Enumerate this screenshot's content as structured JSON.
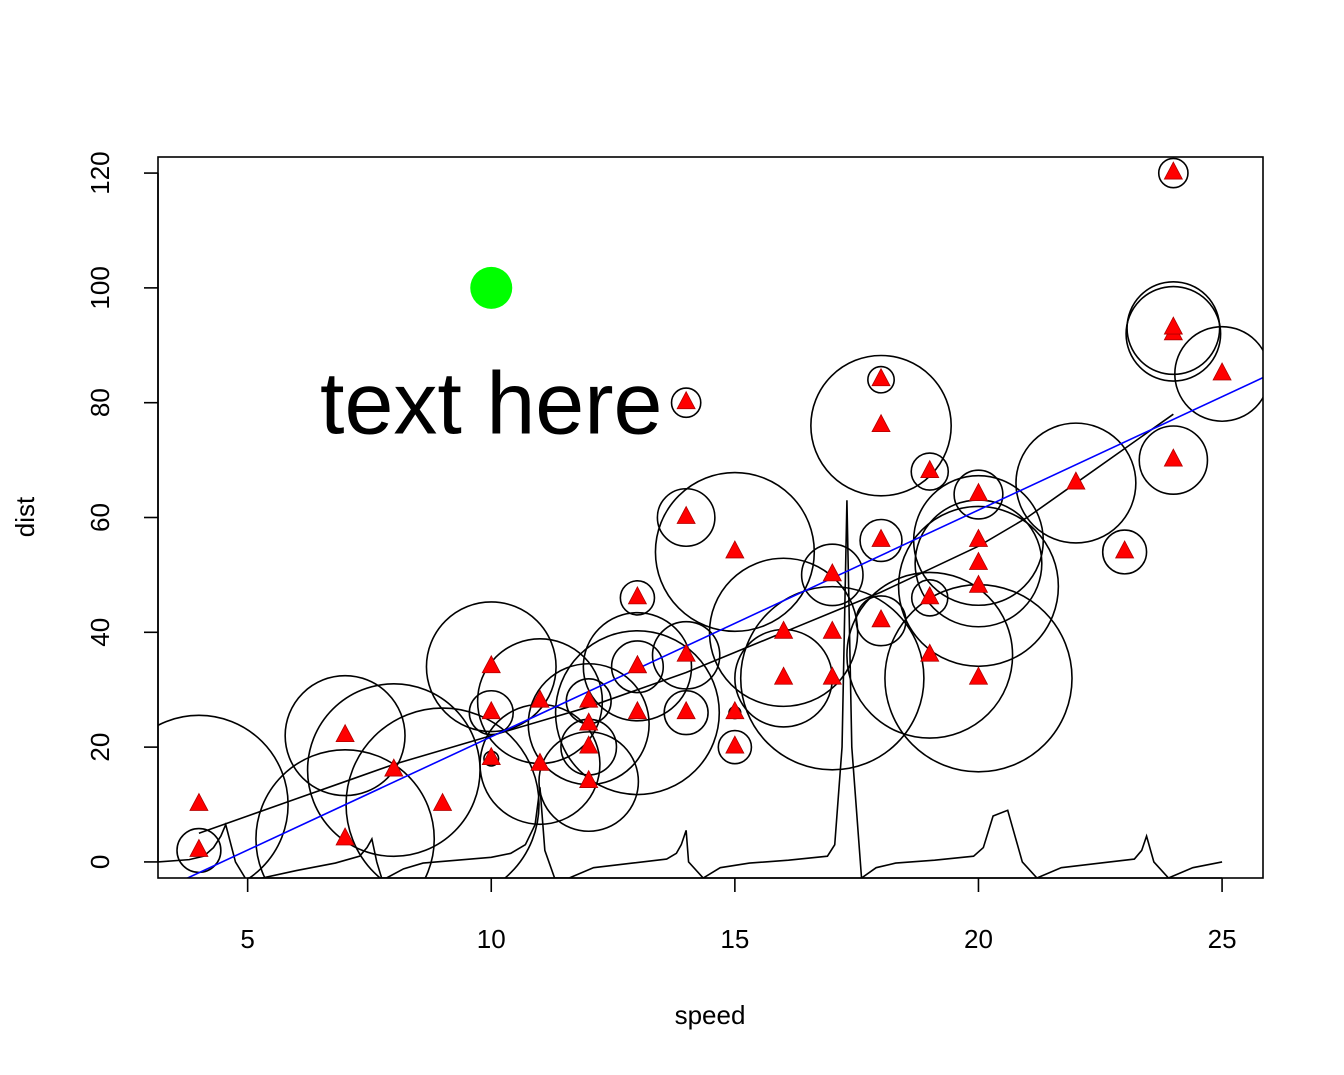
{
  "chart_data": {
    "type": "scatter",
    "title": "",
    "xlabel": "speed",
    "ylabel": "dist",
    "xlim": [
      3.16,
      25.84
    ],
    "ylim": [
      -2.8,
      122.8
    ],
    "xticks": [
      5,
      10,
      15,
      20,
      25
    ],
    "yticks": [
      0,
      20,
      40,
      60,
      80,
      100,
      120
    ],
    "grid": false,
    "colors": {
      "points": "#ff0000",
      "regression_line": "#0000ff",
      "highlight_point": "#00ff00",
      "circles": "#000000",
      "lowess": "#000000",
      "decorative_line": "#000000"
    },
    "series": [
      {
        "type": "scatter",
        "marker": "triangle",
        "x": [
          4,
          4,
          7,
          7,
          8,
          9,
          10,
          10,
          10,
          11,
          11,
          12,
          12,
          12,
          12,
          13,
          13,
          13,
          13,
          14,
          14,
          14,
          14,
          15,
          15,
          15,
          16,
          16,
          17,
          17,
          17,
          18,
          18,
          18,
          18,
          19,
          19,
          19,
          20,
          20,
          20,
          20,
          20,
          22,
          23,
          24,
          24,
          24,
          24,
          25
        ],
        "y": [
          2,
          10,
          4,
          22,
          16,
          10,
          18,
          26,
          34,
          17,
          28,
          14,
          20,
          24,
          28,
          26,
          34,
          34,
          46,
          26,
          36,
          60,
          80,
          20,
          26,
          54,
          32,
          40,
          32,
          40,
          50,
          42,
          56,
          76,
          84,
          36,
          46,
          68,
          32,
          48,
          52,
          56,
          64,
          66,
          54,
          70,
          92,
          93,
          120,
          85
        ]
      },
      {
        "type": "line",
        "note_values": "least-squares fit endpoints",
        "x": [
          3.16,
          25.84
        ],
        "y": [
          -5.2,
          84.36
        ]
      },
      {
        "type": "line",
        "x": [
          4,
          5,
          6,
          7,
          8,
          9,
          10,
          11,
          12,
          13,
          14,
          15,
          16,
          17,
          18,
          19,
          20,
          21,
          22,
          23,
          24
        ],
        "y": [
          5,
          8,
          11,
          14,
          17,
          19.5,
          22,
          24.5,
          27,
          30,
          33,
          36.5,
          40,
          43.5,
          47,
          51,
          55,
          60,
          66,
          72,
          78
        ]
      },
      {
        "type": "line",
        "x": [
          3.16,
          3.8,
          4.1,
          4.3,
          4.45,
          4.55,
          4.75,
          5.0,
          5.3,
          6.0,
          6.8,
          7.3,
          7.45,
          7.55,
          7.65,
          7.75,
          7.85,
          8.2,
          8.6,
          9.3,
          10.0,
          10.4,
          10.7,
          10.9,
          11.0,
          11.1,
          11.3,
          11.6,
          12.1,
          12.9,
          13.6,
          13.8,
          13.9,
          14.0,
          14.05,
          14.35,
          14.7,
          15.3,
          16.1,
          16.9,
          17.05,
          17.2,
          17.3,
          17.4,
          17.6,
          17.9,
          18.3,
          19.1,
          19.9,
          20.1,
          20.3,
          20.6,
          20.9,
          21.2,
          21.7,
          22.5,
          23.2,
          23.35,
          23.45,
          23.6,
          23.9,
          24.4,
          25.0
        ],
        "y": [
          0,
          0.4,
          1.0,
          2.5,
          4.5,
          6.5,
          0,
          -3.5,
          -2.8,
          -1.5,
          -0.2,
          1.0,
          2.5,
          4.0,
          0,
          -2.8,
          -2.8,
          -1.2,
          -0.2,
          0.3,
          0.8,
          1.5,
          3.0,
          6.5,
          13.0,
          2.0,
          -2.8,
          -2.8,
          -1.0,
          -0.2,
          0.5,
          1.5,
          3.0,
          5.5,
          0,
          -2.8,
          -1.0,
          -0.2,
          0.3,
          1.0,
          3.0,
          20.0,
          63.0,
          20.0,
          -2.8,
          -1.0,
          -0.2,
          0.3,
          1.0,
          2.5,
          8.0,
          9.0,
          0,
          -2.8,
          -1.0,
          -0.2,
          0.5,
          2.0,
          4.5,
          0,
          -2.8,
          -1.0,
          0.0
        ]
      },
      {
        "type": "symbols",
        "shape": "circle",
        "x": [
          4,
          4,
          7,
          7,
          8,
          9,
          10,
          10,
          10,
          11,
          11,
          12,
          12,
          12,
          12,
          13,
          13,
          13,
          13,
          14,
          14,
          14,
          14,
          15,
          15,
          15,
          16,
          16,
          17,
          17,
          17,
          18,
          18,
          18,
          18,
          19,
          19,
          19,
          20,
          20,
          20,
          20,
          20,
          22,
          23,
          24,
          24,
          24,
          24,
          25
        ],
        "y": [
          2,
          10,
          4,
          22,
          16,
          10,
          18,
          26,
          34,
          17,
          28,
          14,
          20,
          24,
          28,
          26,
          34,
          34,
          46,
          26,
          36,
          60,
          80,
          20,
          26,
          54,
          32,
          40,
          32,
          40,
          50,
          42,
          56,
          76,
          84,
          36,
          46,
          68,
          32,
          48,
          52,
          56,
          64,
          66,
          54,
          70,
          92,
          93,
          120,
          85
        ],
        "r": [
          0.45,
          1.83,
          1.83,
          1.23,
          1.77,
          1.98,
          0.15,
          0.45,
          1.33,
          1.23,
          1.28,
          1.02,
          0.57,
          1.24,
          0.46,
          1.68,
          1.11,
          0.53,
          0.35,
          0.45,
          0.69,
          0.59,
          0.3,
          0.34,
          0.12,
          1.63,
          1.0,
          1.52,
          1.88,
          0.07,
          0.63,
          0.51,
          0.43,
          1.44,
          0.27,
          1.7,
          0.37,
          0.38,
          1.92,
          1.64,
          1.3,
          1.33,
          0.5,
          1.23,
          0.45,
          0.7,
          0.97,
          0.95,
          0.3,
          0.97
        ]
      },
      {
        "type": "point",
        "marker": "filled-circle",
        "x": [
          10
        ],
        "y": [
          100
        ]
      }
    ],
    "annotations": [
      {
        "text": "text here",
        "x": 10,
        "y": 80
      }
    ]
  }
}
